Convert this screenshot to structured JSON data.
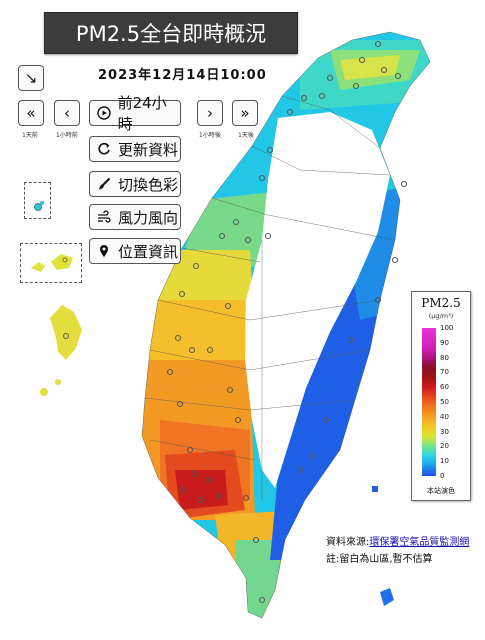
{
  "header": {
    "title": "PM2.5全台即時概況",
    "datetime": "2023年12月14日10:00"
  },
  "nav": {
    "first_label": "1天前",
    "prev_label": "1小時前",
    "next_label": "1小時後",
    "last_label": "1天後",
    "first_glyph": "«",
    "prev_glyph": "‹",
    "next_glyph": "›",
    "last_glyph": "»",
    "collapse_glyph": "↘"
  },
  "toolbar": {
    "play_label": "前24小時",
    "refresh_label": "更新資料",
    "color_label": "切換色彩",
    "wind_label": "風力風向",
    "location_label": "位置資訊"
  },
  "legend": {
    "title": "PM2.5",
    "unit": "(μg/m³)",
    "ticks": [
      "100",
      "90",
      "80",
      "70",
      "60",
      "50",
      "40",
      "30",
      "20",
      "10",
      "0"
    ],
    "note": "本站演色"
  },
  "footer": {
    "source_prefix": "資料來源:",
    "source_link": "環保署空氣品質監測網",
    "note": "註:留白為山區,暫不估算"
  },
  "colors": {
    "title_bg": "#3c3c3c",
    "low": "#1f4fe8",
    "mid": "#f6c422",
    "high": "#cc1b1b"
  },
  "icons": [
    "collapse-icon",
    "play-icon",
    "refresh-icon",
    "brush-icon",
    "wind-icon",
    "location-pin-icon"
  ]
}
